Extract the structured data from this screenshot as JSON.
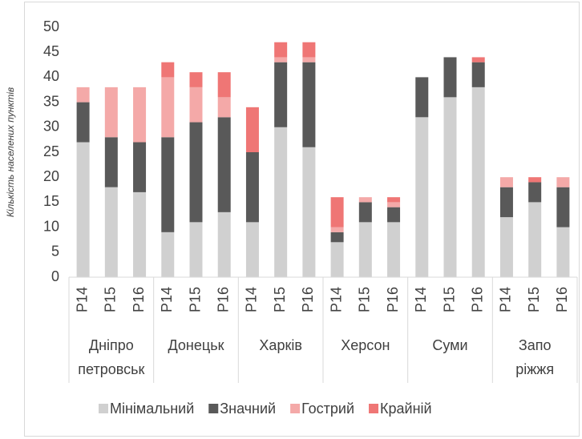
{
  "chart_data": {
    "type": "stacked_bar",
    "y_label": "Кількість населених пунктів",
    "categories": [
      "P14",
      "P15",
      "P16",
      "P14",
      "P15",
      "P16",
      "P14",
      "P15",
      "P16",
      "P14",
      "P15",
      "P16",
      "P14",
      "P15",
      "P16",
      "P14",
      "P15",
      "P16"
    ],
    "groups": [
      [
        "Дніпро",
        "петровськ"
      ],
      [
        "Донецьк"
      ],
      [
        "Харків"
      ],
      [
        "Херсон"
      ],
      [
        "Суми"
      ],
      [
        "Запо",
        "ріжжя"
      ]
    ],
    "series": [
      {
        "name": "Мінімальний",
        "color": "#d0d0d0",
        "values": [
          27,
          18,
          17,
          9,
          11,
          13,
          11,
          30,
          26,
          7,
          11,
          11,
          32,
          36,
          38,
          12,
          15,
          10
        ]
      },
      {
        "name": "Значний",
        "color": "#595959",
        "values": [
          8,
          10,
          10,
          19,
          20,
          19,
          14,
          13,
          17,
          2,
          4,
          3,
          8,
          8,
          5,
          6,
          4,
          8
        ]
      },
      {
        "name": "Гострий",
        "color": "#f4a9a8",
        "values": [
          3,
          10,
          11,
          12,
          7,
          4,
          0,
          1,
          1,
          1,
          1,
          1,
          0,
          0,
          0,
          2,
          0,
          2
        ]
      },
      {
        "name": "Крайній",
        "color": "#ef7675",
        "values": [
          0,
          0,
          0,
          3,
          3,
          5,
          9,
          3,
          3,
          6,
          0,
          1,
          0,
          0,
          1,
          0,
          1,
          0
        ]
      }
    ],
    "ylim": [
      0,
      50
    ],
    "yticks": [
      0,
      5,
      10,
      15,
      20,
      25,
      30,
      35,
      40,
      45,
      50
    ],
    "legend": "bottom"
  }
}
